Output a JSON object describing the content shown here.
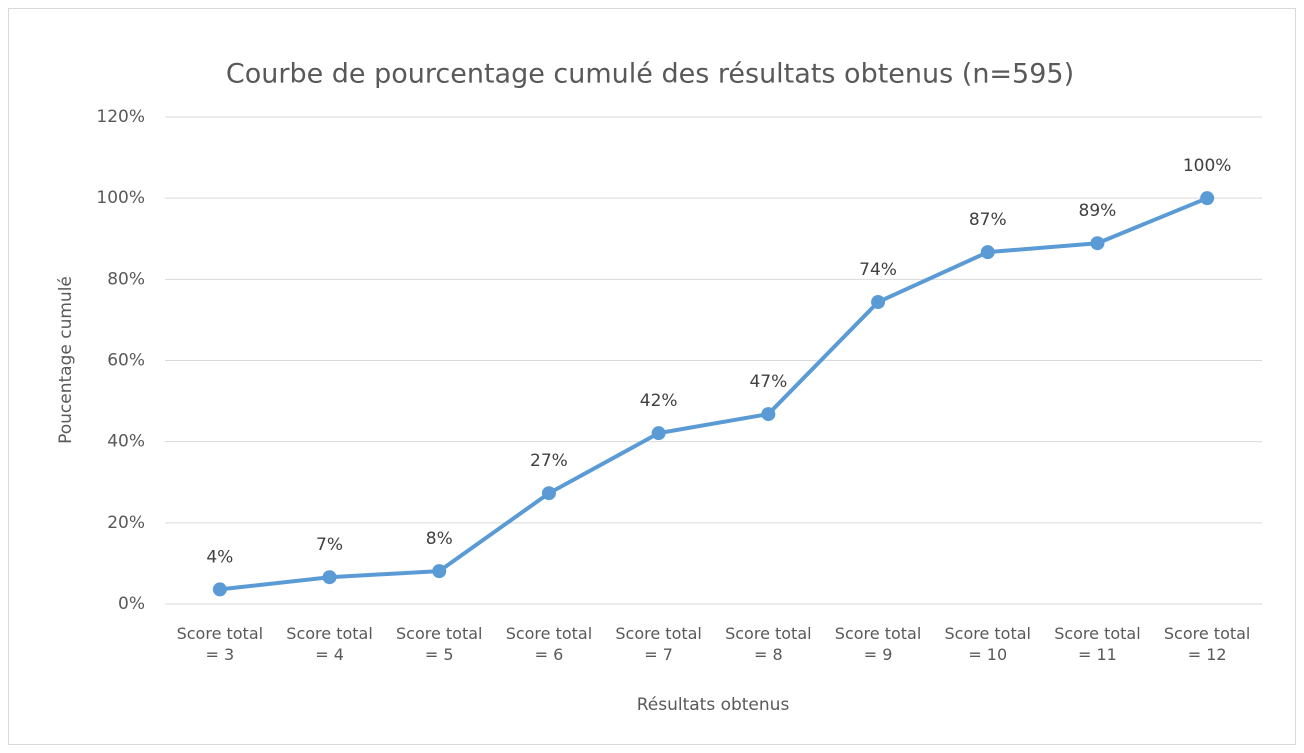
{
  "chart_data": {
    "type": "line",
    "title": "Courbe de pourcentage cumulé des résultats obtenus (n=595)",
    "x_label": "Résultats obtenus",
    "y_label": "Poucentage cumulé",
    "categories": [
      "Score total = 3",
      "Score total = 4",
      "Score total = 5",
      "Score total = 6",
      "Score total = 7",
      "Score total = 8",
      "Score total = 9",
      "Score total = 10",
      "Score total = 11",
      "Score total = 12"
    ],
    "series": [
      {
        "name": "Poucentage cumulé",
        "color": "#5b9bd5",
        "values": [
          3.6,
          6.6,
          8.1,
          27.3,
          42.1,
          46.8,
          74.4,
          86.7,
          88.9,
          100
        ],
        "value_labels": [
          "4%",
          "7%",
          "8%",
          "27%",
          "42%",
          "47%",
          "74%",
          "87%",
          "89%",
          "100%"
        ]
      }
    ],
    "ylim": [
      0,
      120
    ],
    "yticks": [
      {
        "value": 0,
        "label": "0%"
      },
      {
        "value": 20,
        "label": "20%"
      },
      {
        "value": 40,
        "label": "40%"
      },
      {
        "value": 60,
        "label": "60%"
      },
      {
        "value": 80,
        "label": "80%"
      },
      {
        "value": 100,
        "label": "100%"
      },
      {
        "value": 120,
        "label": "120%"
      }
    ],
    "grid": true
  }
}
